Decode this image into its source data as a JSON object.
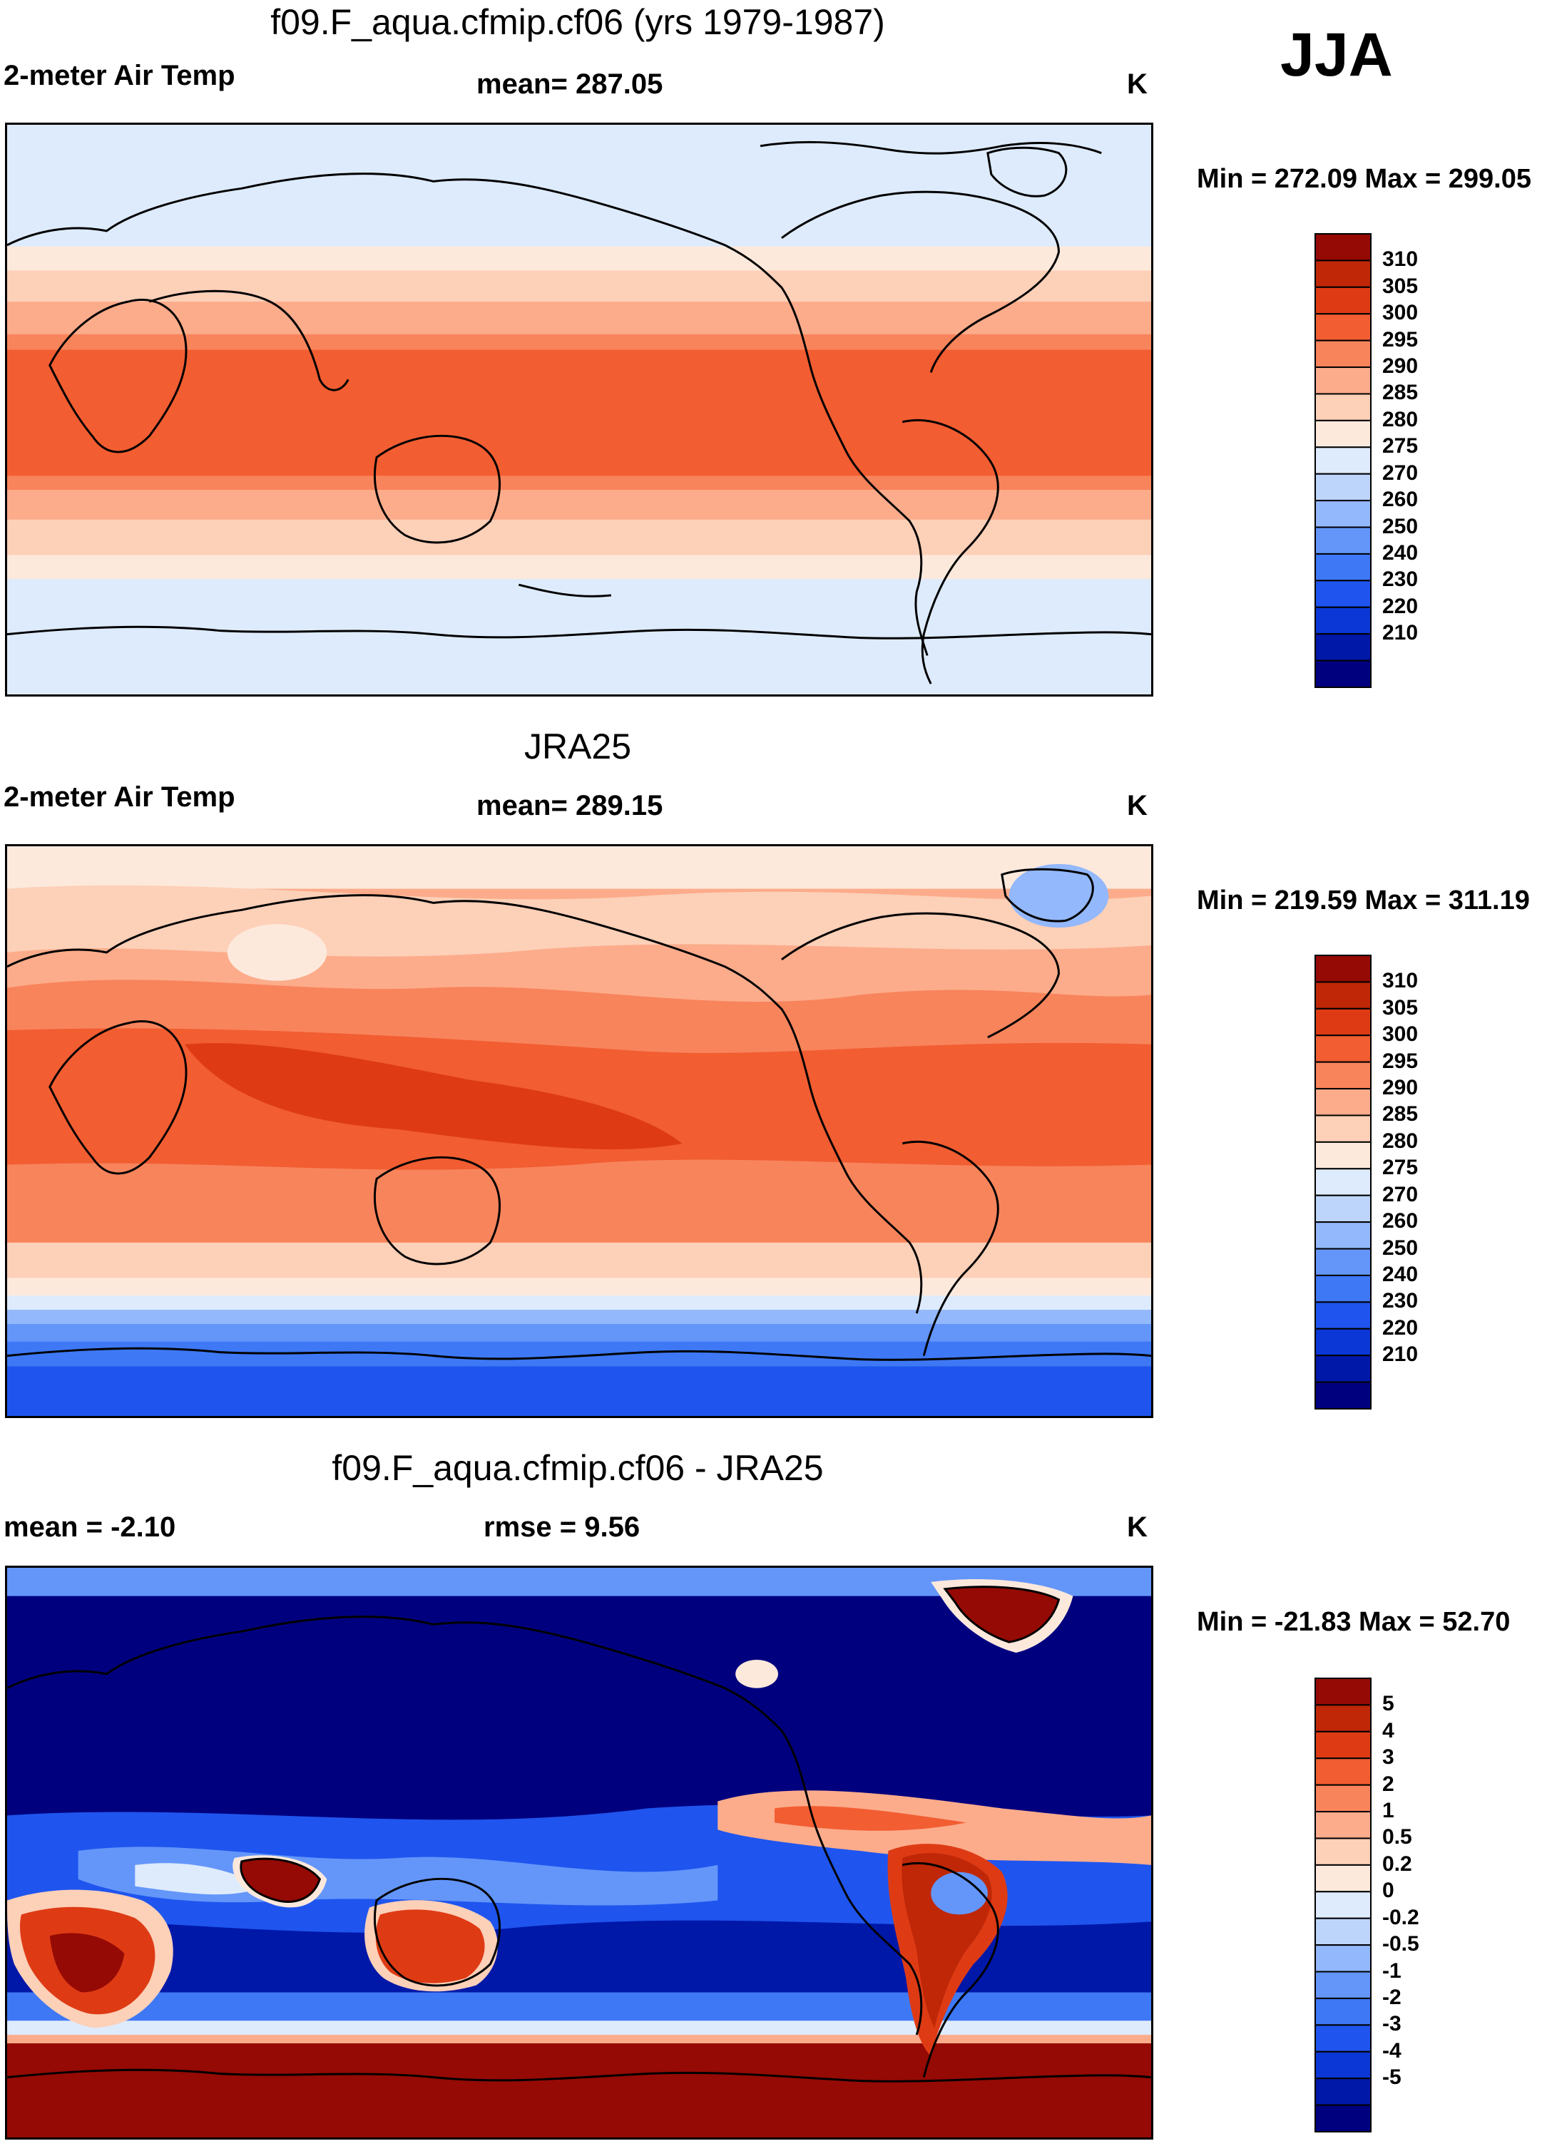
{
  "season": "JJA",
  "colors": {
    "temp_scale": [
      "#00007f",
      "#0018a8",
      "#0a37d6",
      "#1f55ee",
      "#3e78f5",
      "#6496fa",
      "#93b8fb",
      "#bdd5fb",
      "#deebfc",
      "#fde9dc",
      "#fdd0b8",
      "#fcac8b",
      "#f8845c",
      "#f25d32",
      "#de3b15",
      "#bf2707",
      "#950a04"
    ],
    "diff_scale": [
      "#00007f",
      "#0018a8",
      "#0a37d6",
      "#1f55ee",
      "#3e78f5",
      "#6496fa",
      "#93b8fb",
      "#bdd5fb",
      "#deebfc",
      "#fde9dc",
      "#fdd0b8",
      "#fcac8b",
      "#f8845c",
      "#f25d32",
      "#de3b15",
      "#bf2707",
      "#950a04"
    ],
    "coast": "#000000"
  },
  "panels": [
    {
      "title": "f09.F_aqua.cfmip.cf06 (yrs 1979-1987)",
      "left_label": "2-meter Air Temp",
      "center_label": "mean= 287.05",
      "units": "K",
      "minmax": "Min = 272.09 Max = 299.05",
      "colorbar_ticks": [
        "310",
        "305",
        "300",
        "295",
        "290",
        "285",
        "280",
        "275",
        "270",
        "260",
        "250",
        "240",
        "230",
        "220",
        "210"
      ]
    },
    {
      "title": "JRA25",
      "left_label": "2-meter Air Temp",
      "center_label": "mean= 289.15",
      "units": "K",
      "minmax": "Min = 219.59 Max = 311.19",
      "colorbar_ticks": [
        "310",
        "305",
        "300",
        "295",
        "290",
        "285",
        "280",
        "275",
        "270",
        "260",
        "250",
        "240",
        "230",
        "220",
        "210"
      ]
    },
    {
      "title": "f09.F_aqua.cfmip.cf06 - JRA25",
      "left_label": "mean =  -2.10",
      "center_label": "rmse =   9.56",
      "units": "K",
      "minmax": "Min = -21.83 Max =  52.70",
      "colorbar_ticks": [
        "5",
        "4",
        "3",
        "2",
        "1",
        "0.5",
        "0.2",
        "0",
        "-0.2",
        "-0.5",
        "-1",
        "-2",
        "-3",
        "-4",
        "-5"
      ]
    }
  ]
}
